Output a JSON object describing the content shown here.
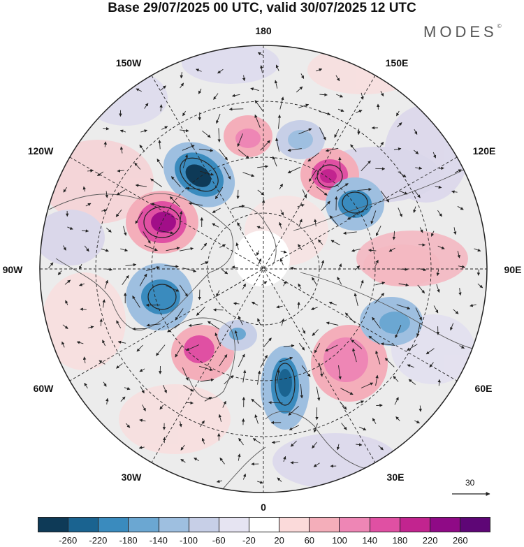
{
  "title": "Base 29/07/2025 00 UTC, valid 30/07/2025 12 UTC",
  "brand": "MODES",
  "brand_mark": "©",
  "longitude_labels": {
    "n180": "180",
    "e150": "150E",
    "e120": "120E",
    "e90": "90E",
    "e60": "60E",
    "e30": "30E",
    "n0": "0",
    "w30": "30W",
    "w60": "60W",
    "w90": "90W",
    "w120": "120W",
    "w150": "150W"
  },
  "reference_vector": {
    "label": "30"
  },
  "colorbar": {
    "colors": [
      "#0e3a57",
      "#1a6390",
      "#3a8bbe",
      "#6ba7d2",
      "#9ebfe0",
      "#c7cfe7",
      "#e6e4f2",
      "#ffffff",
      "#fbdada",
      "#f4aeba",
      "#ee86b5",
      "#e050a3",
      "#c2248f",
      "#8f0a86",
      "#5e0676"
    ],
    "tick_labels": [
      "-260",
      "-220",
      "-180",
      "-140",
      "-100",
      "-60",
      "-20",
      "20",
      "60",
      "100",
      "140",
      "180",
      "220",
      "260"
    ]
  },
  "colors": {
    "land_shade": "#e6e6e6",
    "grid": "#222222",
    "coast": "#555555"
  }
}
